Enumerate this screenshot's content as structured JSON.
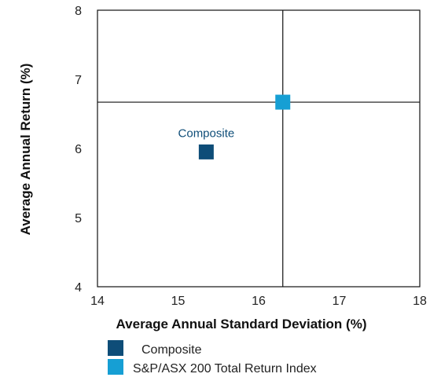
{
  "chart_data": {
    "type": "scatter",
    "xlabel": "Average Annual Standard Deviation (%)",
    "ylabel": "Average Annual Return (%)",
    "xlim": [
      14,
      18
    ],
    "ylim": [
      4,
      8
    ],
    "x_ticks": [
      14,
      15,
      16,
      17,
      18
    ],
    "y_ticks": [
      4,
      5,
      6,
      7,
      8
    ],
    "grid": false,
    "reference_lines": {
      "x": 16.3,
      "y": 6.67
    },
    "series": [
      {
        "name": "Composite",
        "x": 15.35,
        "y": 5.95,
        "color": "#0e4d78",
        "marker": "square"
      },
      {
        "name": "S&P/ASX 200 Total Return Index",
        "x": 16.3,
        "y": 6.67,
        "color": "#169fd4",
        "marker": "square"
      }
    ],
    "annotations": [
      {
        "text": "Composite",
        "series": 0
      }
    ],
    "legend": {
      "placement": "bottom-left",
      "items": [
        {
          "label": "Composite",
          "color": "#0e4d78"
        },
        {
          "label": "S&P/ASX 200 Total Return Index",
          "color": "#169fd4"
        }
      ]
    }
  }
}
